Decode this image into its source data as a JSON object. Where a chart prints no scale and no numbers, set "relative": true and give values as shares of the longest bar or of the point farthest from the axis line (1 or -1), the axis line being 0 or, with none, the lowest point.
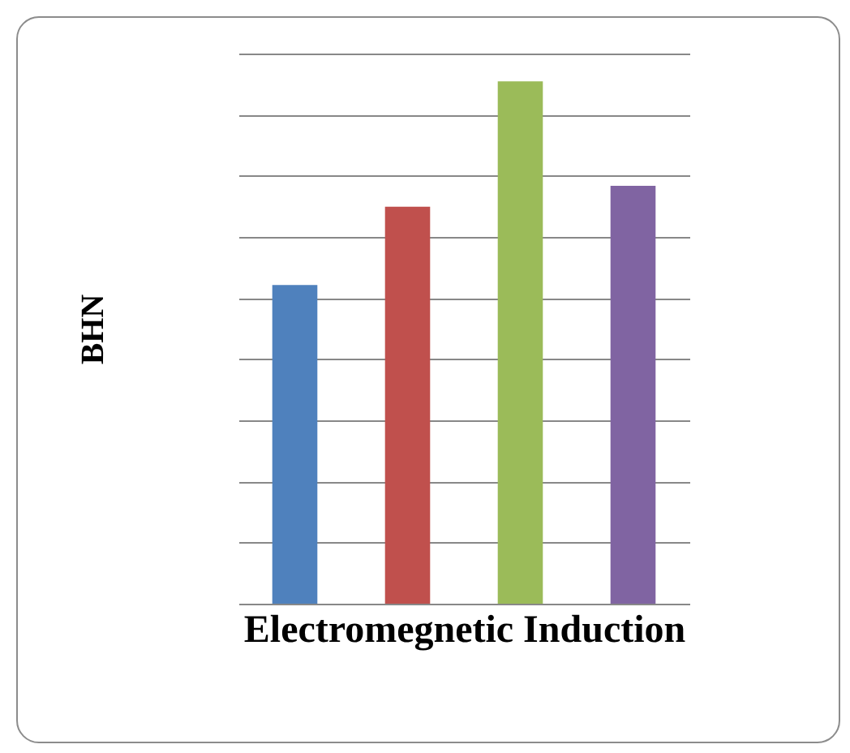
{
  "chart_data": {
    "type": "bar",
    "xlabel": "Electromegnetic Induction",
    "ylabel": "BHN",
    "relative": true,
    "grid": "y",
    "categories": [
      null,
      null,
      null,
      null
    ],
    "values": [
      0.61,
      0.76,
      1,
      0.8
    ],
    "colors": [
      "#4f81bd",
      "#c0504d",
      "#9bbb59",
      "#8064a2"
    ]
  }
}
